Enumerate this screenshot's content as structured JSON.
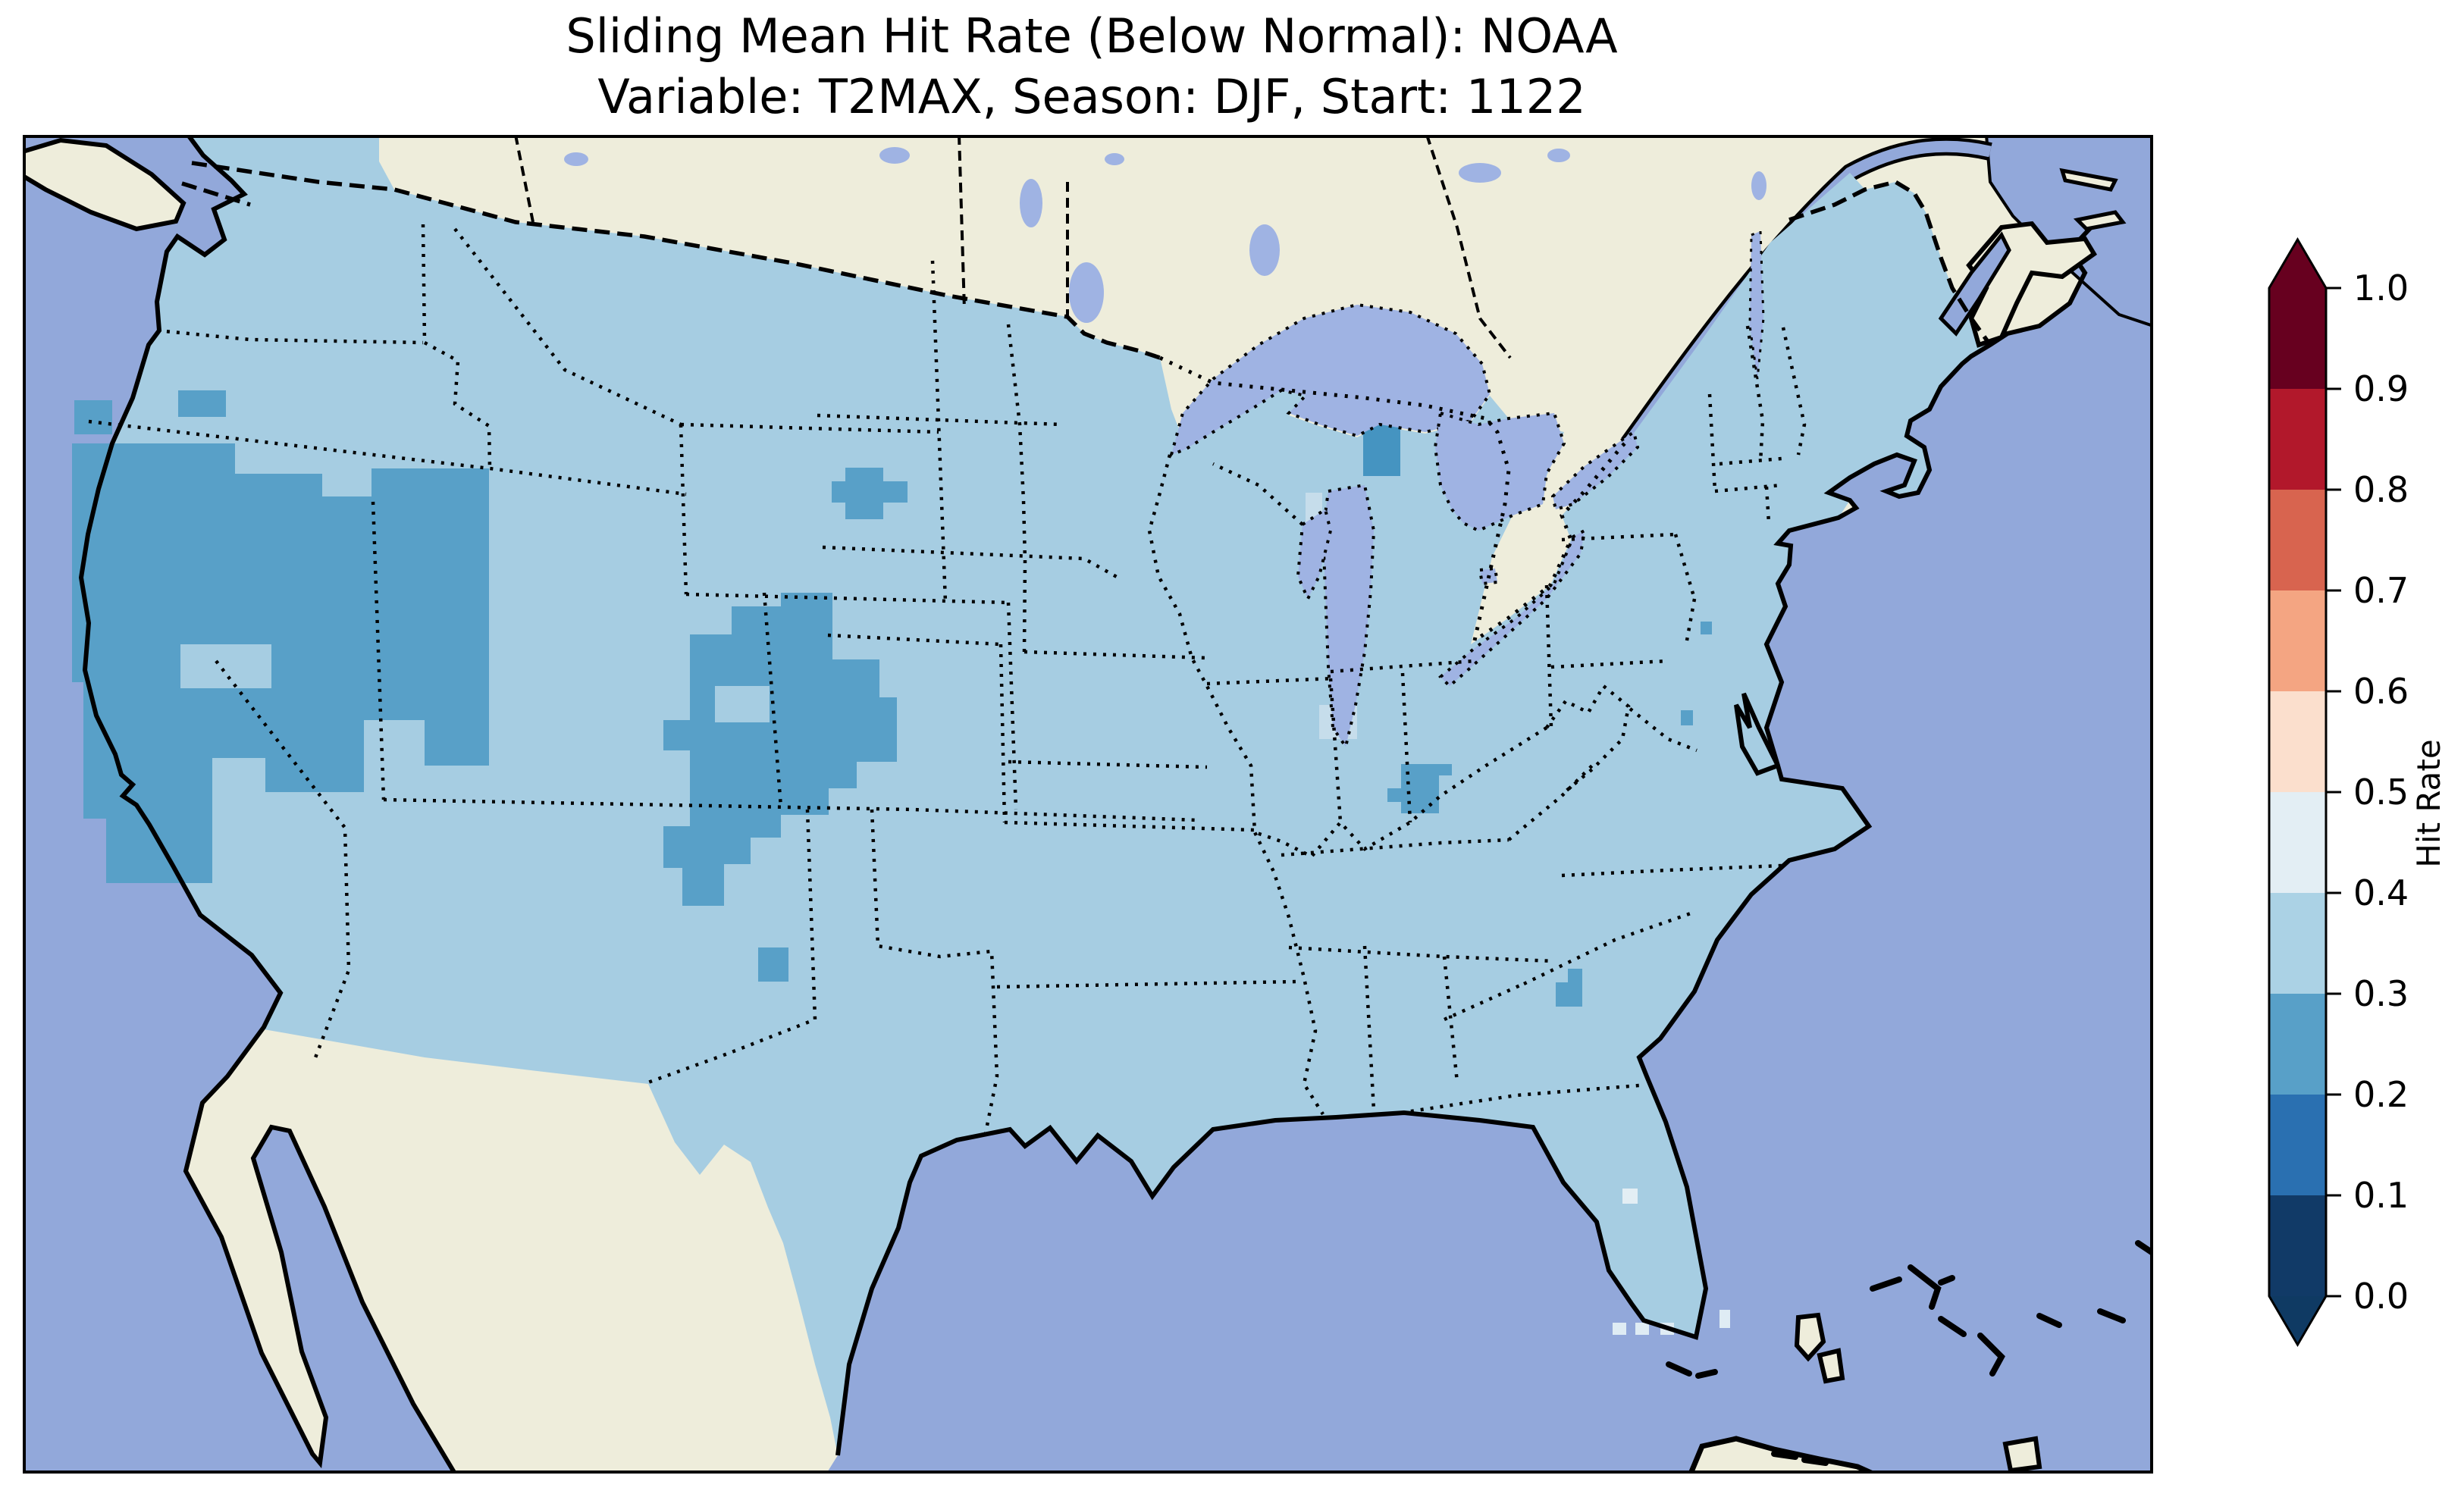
{
  "title": {
    "line1": "Sliding Mean Hit Rate (Below Normal): NOAA",
    "line2": "Variable: T2MAX, Season: DJF, Start: 1122"
  },
  "colorbar": {
    "label": "Hit Rate",
    "ticks": [
      "0.0",
      "0.1",
      "0.2",
      "0.3",
      "0.4",
      "0.5",
      "0.6",
      "0.7",
      "0.8",
      "0.9",
      "1.0"
    ],
    "boundaries": [
      0.0,
      0.1,
      0.2,
      0.3,
      0.4,
      0.5,
      0.6,
      0.7,
      0.8,
      0.9,
      1.0
    ],
    "segment_colors_bottom_to_top": [
      "#113a67",
      "#2a70b1",
      "#58a0c8",
      "#abd2e5",
      "#e3eef4",
      "#fbdfcd",
      "#f4a582",
      "#d8644f",
      "#b2182b",
      "#67001f"
    ],
    "under_arrow_color": "#0f3a63",
    "over_arrow_color": "#67001f",
    "extend": "both"
  },
  "map": {
    "colors": {
      "ocean": "#92a8da",
      "lake": "#9fb3e3",
      "land_nodata": "#eeeddb",
      "coastline": "#000000",
      "border": "#000000",
      "base_data": "#a6cde2",
      "frame": "#000000"
    },
    "base_bin": "0.3-0.4"
  },
  "chart_data": {
    "type": "heatmap",
    "subtype": "choropleth-map",
    "title": "Sliding Mean Hit Rate (Below Normal): NOAA — Variable: T2MAX, Season: DJF, Start: 1122",
    "variable": "T2MAX",
    "season": "DJF",
    "start": "1122",
    "source": "NOAA",
    "colorbar_label": "Hit Rate",
    "value_range": [
      0.0,
      1.0
    ],
    "base_region": {
      "name": "contiguous-us",
      "value_bin": "0.3-0.4",
      "color": "#a6cde2"
    },
    "regions": [
      {
        "id": "west-coast-great-basin-patch",
        "value_bin": "0.2-0.3",
        "color": "#58a0c8",
        "points": [
          95,
          585,
          310,
          585,
          310,
          625,
          425,
          625,
          425,
          655,
          490,
          655,
          490,
          618,
          645,
          618,
          645,
          1010,
          560,
          1010,
          560,
          950,
          480,
          950,
          480,
          1045,
          350,
          1045,
          350,
          1000,
          280,
          1000,
          280,
          1165,
          140,
          1165,
          140,
          1080,
          110,
          1080,
          110,
          900,
          95,
          900
        ]
      },
      {
        "id": "sacramento-valley-hole",
        "value_bin": "0.3-0.4",
        "color": "#a6cde2",
        "points": [
          238,
          850,
          358,
          850,
          358,
          908,
          238,
          908
        ]
      },
      {
        "id": "oregon-coast-spot",
        "value_bin": "0.2-0.3",
        "color": "#58a0c8",
        "points": [
          98,
          528,
          148,
          528,
          148,
          573,
          98,
          573
        ]
      },
      {
        "id": "central-oregon-spot",
        "value_bin": "0.2-0.3",
        "color": "#58a0c8",
        "points": [
          235,
          515,
          298,
          515,
          298,
          550,
          235,
          550
        ]
      },
      {
        "id": "colorado-rockies-patch",
        "value_bin": "0.2-0.3",
        "color": "#58a0c8",
        "points": [
          965,
          800,
          1030,
          800,
          1030,
          782,
          1098,
          782,
          1098,
          870,
          1160,
          870,
          1160,
          920,
          1183,
          920,
          1183,
          1005,
          1130,
          1005,
          1130,
          1040,
          1093,
          1040,
          1093,
          1075,
          1030,
          1075,
          1030,
          1105,
          990,
          1105,
          990,
          1140,
          955,
          1140,
          955,
          1195,
          900,
          1195,
          900,
          1145,
          875,
          1145,
          875,
          1090,
          910,
          1090,
          910,
          990,
          875,
          990,
          875,
          950,
          910,
          950,
          910,
          837,
          965,
          837
        ]
      },
      {
        "id": "colorado-hole",
        "value_bin": "0.3-0.4",
        "color": "#a6cde2",
        "points": [
          943,
          905,
          1015,
          905,
          1015,
          953,
          943,
          953
        ]
      },
      {
        "id": "north-dakota-patch",
        "value_bin": "0.2-0.3",
        "color": "#58a0c8",
        "points": [
          1115,
          617,
          1165,
          617,
          1165,
          635,
          1197,
          635,
          1197,
          663,
          1165,
          663,
          1165,
          685,
          1115,
          685,
          1115,
          663,
          1097,
          663,
          1097,
          635,
          1115,
          635
        ]
      },
      {
        "id": "new-mexico-spot",
        "value_bin": "0.2-0.3",
        "color": "#58a0c8",
        "points": [
          1000,
          1250,
          1040,
          1250,
          1040,
          1295,
          1000,
          1295
        ]
      },
      {
        "id": "kentucky-patch",
        "value_bin": "0.2-0.3",
        "color": "#58a0c8",
        "points": [
          1848,
          1008,
          1915,
          1008,
          1915,
          1023,
          1898,
          1023,
          1898,
          1073,
          1848,
          1073,
          1848,
          1058,
          1830,
          1058,
          1830,
          1040,
          1848,
          1040
        ]
      },
      {
        "id": "georgia-spot",
        "value_bin": "0.2-0.3",
        "color": "#58a0c8",
        "points": [
          2068,
          1278,
          2087,
          1278,
          2087,
          1328,
          2052,
          1328,
          2052,
          1296,
          2068,
          1296
        ]
      },
      {
        "id": "lake-michigan-north-cell",
        "value_bin": "0.2-0.3",
        "color": "#4594c1",
        "points": [
          1798,
          559,
          1847,
          559,
          1847,
          628,
          1798,
          628
        ]
      },
      {
        "id": "new-jersey-coast-cell",
        "value_bin": "0.2-0.3",
        "color": "#58a0c8",
        "points": [
          2243,
          820,
          2258,
          820,
          2258,
          837,
          2243,
          837
        ]
      },
      {
        "id": "chesapeake-coast-cell",
        "value_bin": "0.2-0.3",
        "color": "#58a0c8",
        "points": [
          2217,
          937,
          2233,
          937,
          2233,
          957,
          2217,
          957
        ]
      },
      {
        "id": "florida-center-cell",
        "value_bin": "0.4-0.5",
        "color": "#e3eef4",
        "points": [
          2140,
          1568,
          2160,
          1568,
          2160,
          1588,
          2140,
          1588
        ]
      },
      {
        "id": "florida-keys-cell-1",
        "value_bin": "0.4-0.5",
        "color": "#dfecf4",
        "points": [
          2127,
          1745,
          2145,
          1745,
          2145,
          1761,
          2127,
          1761
        ]
      },
      {
        "id": "florida-keys-cell-2",
        "value_bin": "0.4-0.5",
        "color": "#dfecf4",
        "points": [
          2157,
          1745,
          2175,
          1745,
          2175,
          1761,
          2157,
          1761
        ]
      },
      {
        "id": "florida-keys-cell-3",
        "value_bin": "0.4-0.5",
        "color": "#dfecf4",
        "points": [
          2190,
          1745,
          2208,
          1745,
          2208,
          1761,
          2190,
          1761
        ]
      },
      {
        "id": "florida-keys-west-cell",
        "value_bin": "0.4-0.5",
        "color": "#dfecf4",
        "points": [
          2268,
          1728,
          2282,
          1728,
          2282,
          1752,
          2268,
          1752
        ]
      },
      {
        "id": "lake-michigan-west-shore-cells",
        "value_bin": "0.4-0.5",
        "color": "#c6ddeb",
        "points": [
          1722,
          650,
          1744,
          650,
          1744,
          740,
          1722,
          740
        ]
      },
      {
        "id": "lake-michigan-south-shore-cells",
        "value_bin": "0.4-0.5",
        "color": "#c6ddeb",
        "points": [
          1740,
          930,
          1790,
          930,
          1790,
          975,
          1740,
          975
        ]
      }
    ],
    "legend_position": "right",
    "grid": false
  }
}
